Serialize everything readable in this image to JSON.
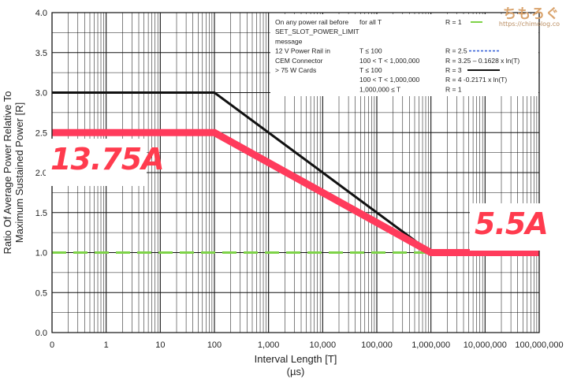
{
  "chart_data": {
    "type": "line",
    "xlabel": "Interval Length  [T]",
    "xunit": "(µs)",
    "ylabel_line1": "Ratio Of Average Power Relative To",
    "ylabel_line2": "Maximum Sustained Power  [R]",
    "x_scale": "log10 with 0 at first tick",
    "x_ticks": [
      "0",
      "1",
      "10",
      "100",
      "1,000",
      "10,000",
      "100,000",
      "1,000,000",
      "10,000,000",
      "100,000,000"
    ],
    "y_ticks": [
      "0.0",
      "0.5",
      "1.0",
      "1.5",
      "2.0",
      "2.5",
      "3.0",
      "3.5",
      "4.0"
    ],
    "ylim": [
      0,
      4
    ],
    "grid": true,
    "series": [
      {
        "name": "",
        "color": "#7ed348",
        "style": "dashed",
        "points": [
          [
            0,
            1
          ],
          [
            100000000,
            1
          ]
        ]
      },
      {
        "name": "",
        "color": "#111111",
        "style": "solid",
        "points": [
          [
            0,
            3
          ],
          [
            100,
            3
          ],
          [
            1000000,
            1
          ],
          [
            100000000,
            1
          ]
        ]
      },
      {
        "name": "",
        "color": "#ff3b5c",
        "style": "solid-thick",
        "points": [
          [
            0,
            2.5
          ],
          [
            100,
            2.5
          ],
          [
            1000000,
            1
          ],
          [
            100000000,
            1
          ]
        ]
      }
    ],
    "legend": {
      "rows": [
        {
          "c1": "On any power rail before",
          "c2": "for all T",
          "c3": "R = 1",
          "swatch": "green-dash"
        },
        {
          "c1": "SET_SLOT_POWER_LIMIT",
          "c2": "",
          "c3": "",
          "swatch": ""
        },
        {
          "c1": "message",
          "c2": "",
          "c3": "",
          "swatch": ""
        },
        {
          "c1": "12 V Power Rail in",
          "c2": "T ≤ 100",
          "c3": "R = 2.5",
          "swatch": "blue-dash"
        },
        {
          "c1": "CEM Connector",
          "c2": "100 < T < 1,000,000",
          "c3": "R = 3.25 – 0.1628 x ln(T)",
          "swatch": ""
        },
        {
          "c1": "> 75 W Cards",
          "c2": "T ≤ 100",
          "c3": "R = 3",
          "swatch": "black-line"
        },
        {
          "c1": "",
          "c2": "100 < T < 1,000,000",
          "c3": "R = 4 -0.2171 x  ln(T)",
          "swatch": ""
        },
        {
          "c1": "",
          "c2": "1,000,000  ≤ T",
          "c3": "R = 1",
          "swatch": ""
        }
      ]
    },
    "annotations": [
      {
        "text": "13.75A",
        "color": "#ff3b4e"
      },
      {
        "text": "5.5A",
        "color": "#ff3b4e"
      }
    ]
  },
  "branding": {
    "logo": "ちもろぐ",
    "url": "https://chimolog.co"
  }
}
